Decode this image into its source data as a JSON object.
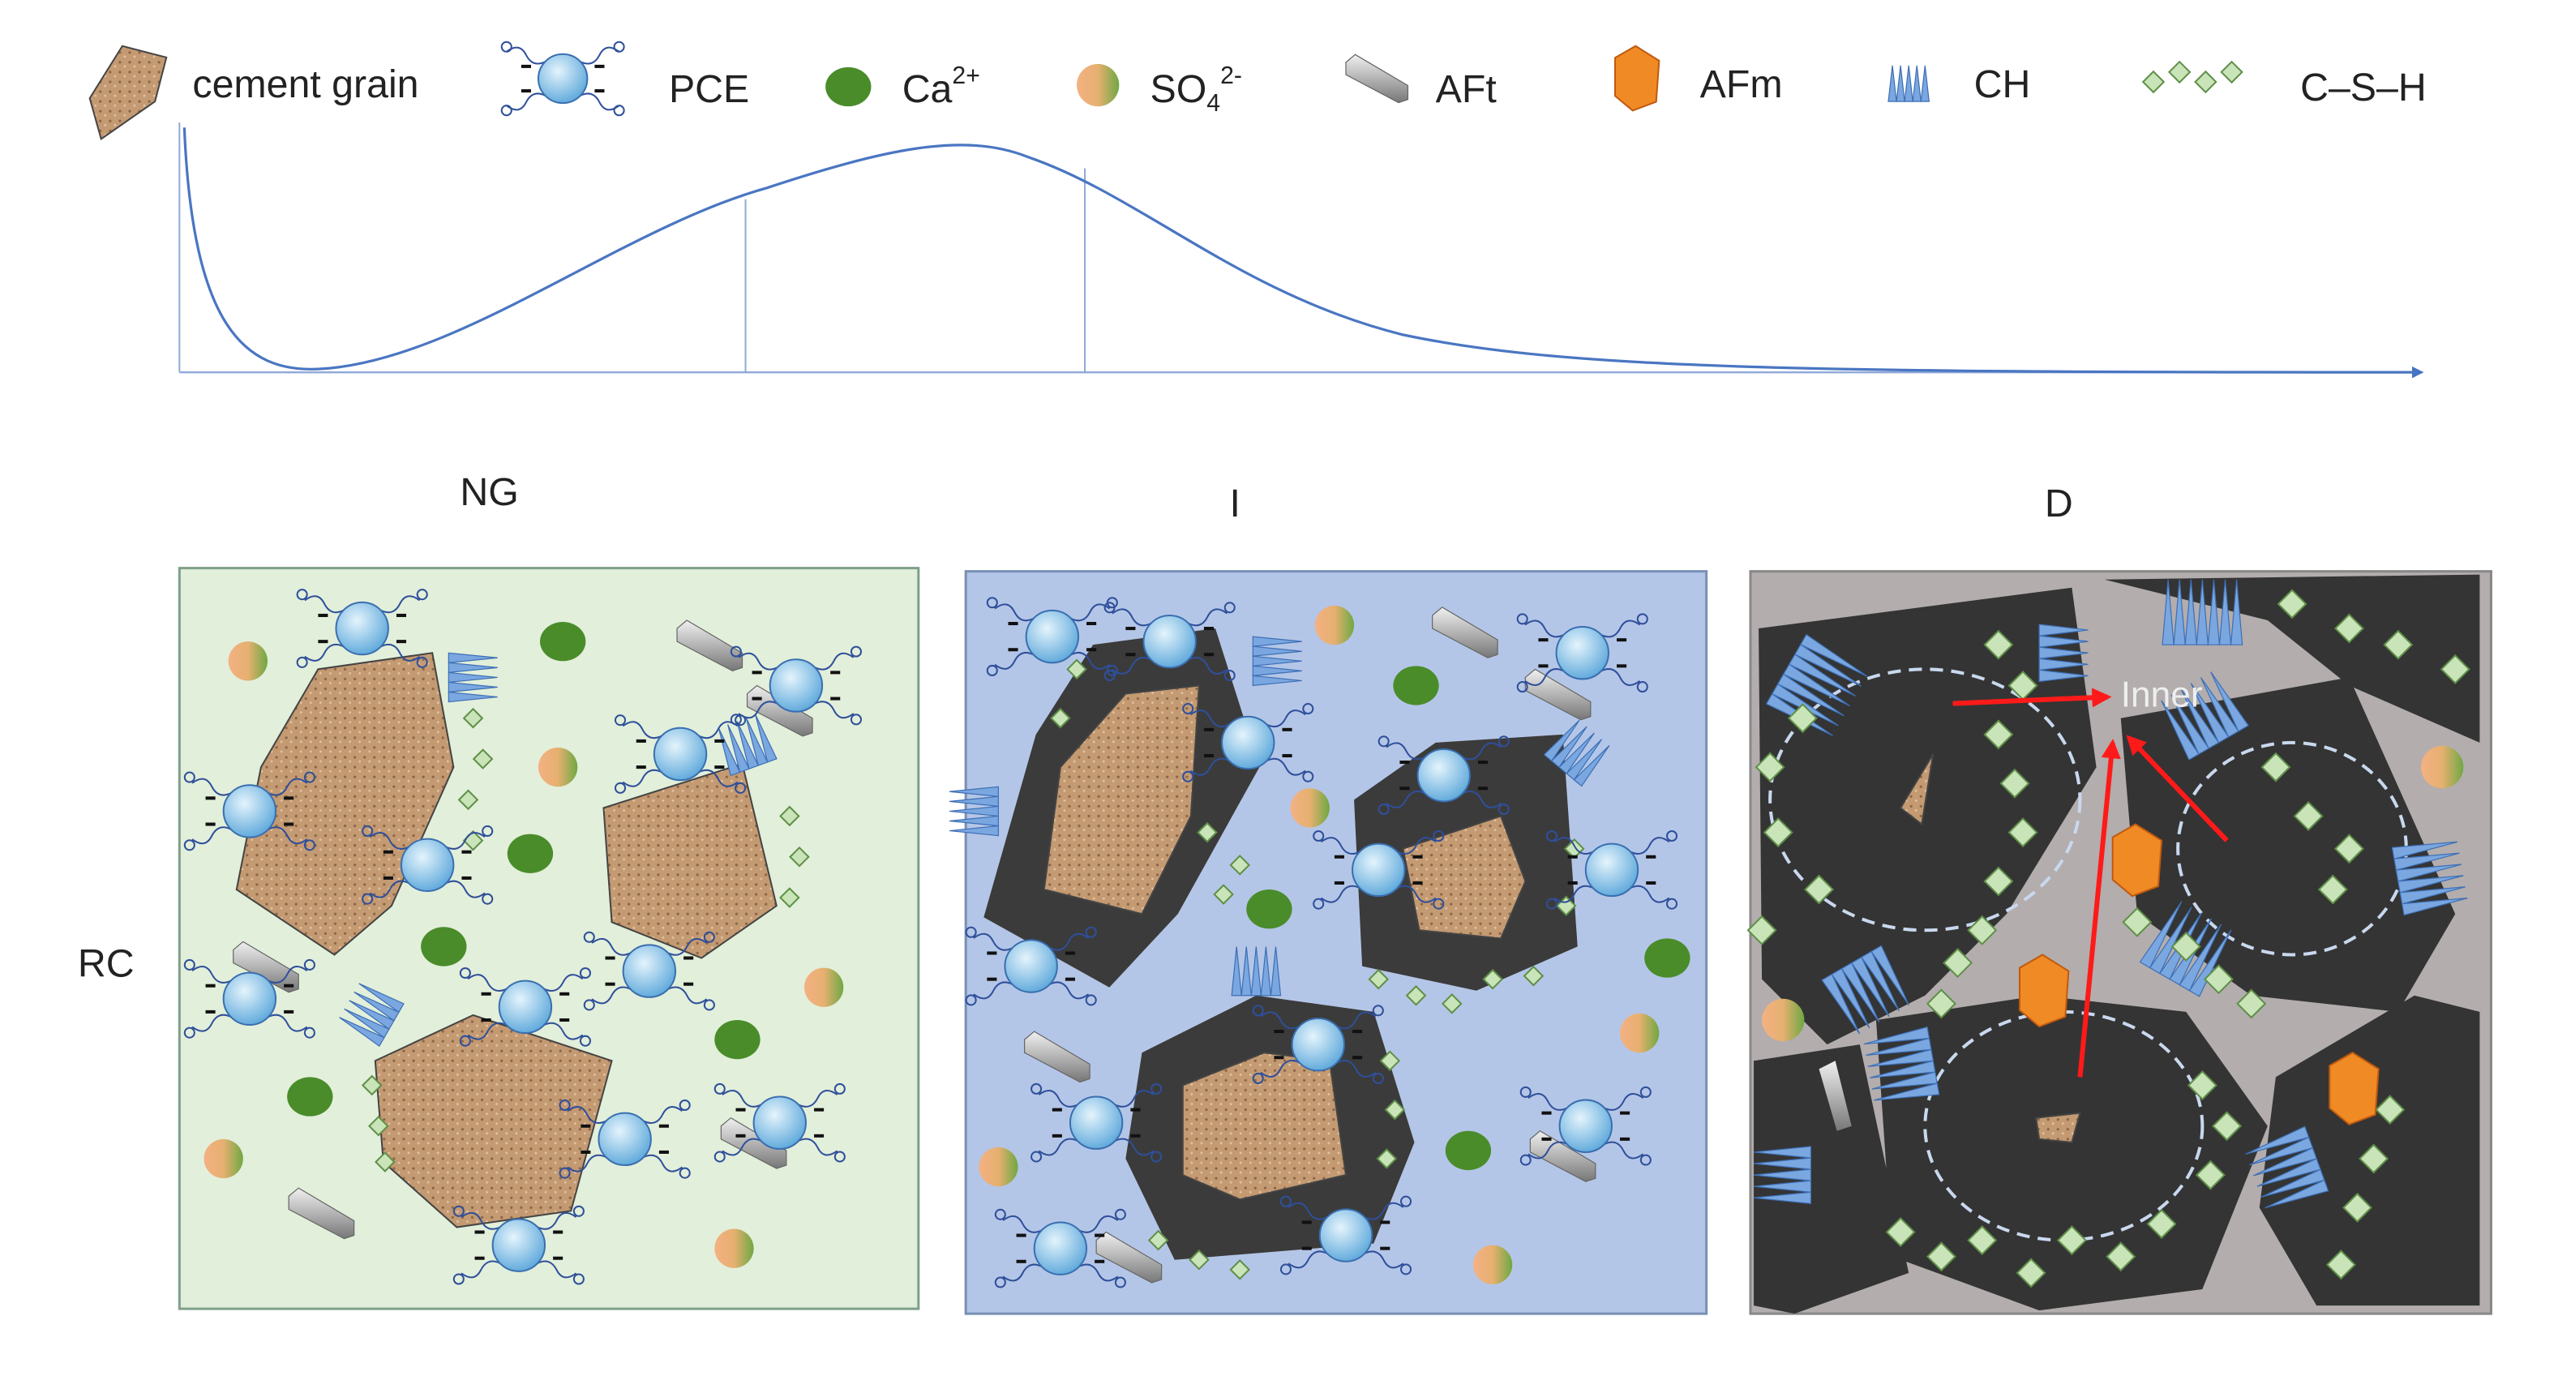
{
  "legend": [
    {
      "label": "cement grain"
    },
    {
      "label": "PCE"
    },
    {
      "label": "Ca",
      "sup": "2+"
    },
    {
      "label": "SO",
      "sub": "4",
      "sup": "2-"
    },
    {
      "label": "AFt"
    },
    {
      "label": "AFm"
    },
    {
      "label": "CH"
    },
    {
      "label": "C–S–H"
    }
  ],
  "panels": [
    {
      "label": "NG"
    },
    {
      "label": "I"
    },
    {
      "label": "D",
      "annotation": "Inner"
    }
  ],
  "row_label": "RC"
}
